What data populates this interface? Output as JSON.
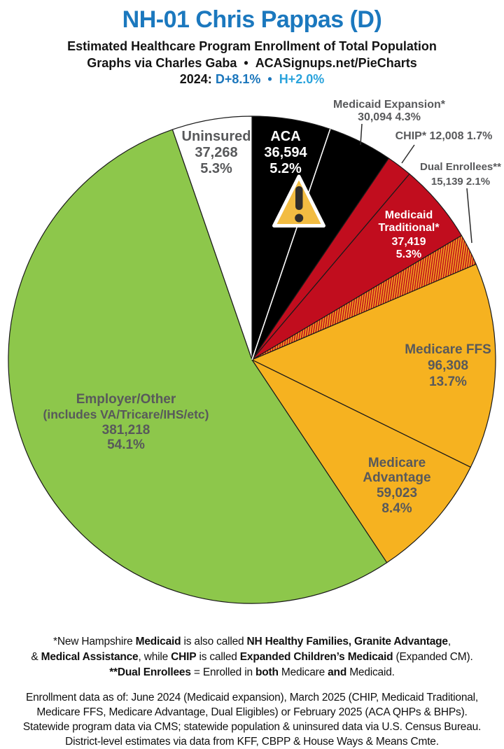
{
  "header": {
    "title": "NH-01 Chris Pappas (D)",
    "title_color": "#1B78BE",
    "subtitle1": "Estimated Healthcare Program Enrollment of Total Population",
    "subtitle2_left": "Graphs via Charles Gaba",
    "subtitle2_bullet": "•",
    "subtitle2_right": "ACASignups.net/PieCharts",
    "partisan": {
      "prefix": "2024:",
      "d_lean": "D+8.1%",
      "bullet": "•",
      "h_lean": "H+2.0%",
      "d_color": "#1B76BC",
      "h_color": "#2AA3DC"
    }
  },
  "chart_data": {
    "type": "pie",
    "title": "Estimated Healthcare Program Enrollment of Total Population",
    "direction": "clockwise",
    "start_angle_deg": 0,
    "legend_position": "labels-on-slices",
    "outline_color": "#1A1A1A",
    "slices": [
      {
        "id": "aca",
        "name": "ACA",
        "value": 36594,
        "value_display": "36,594",
        "pct": 5.2,
        "pct_display": "5.2%",
        "color": "#000000",
        "label_color": "#FFFFFF",
        "label_style": "inside"
      },
      {
        "id": "medicaid-expansion",
        "name": "Medicaid Expansion*",
        "value": 30094,
        "value_display": "30,094",
        "pct": 4.3,
        "pct_display": "4.3%",
        "color": "#000000",
        "label_style": "outside",
        "outside_lines": [
          "Medicaid Expansion*",
          "30,094 4.3%"
        ]
      },
      {
        "id": "chip",
        "name": "CHIP*",
        "value": 12008,
        "value_display": "12,008",
        "pct": 1.7,
        "pct_display": "1.7%",
        "color": "#C10D1E",
        "label_style": "outside",
        "outside_lines": [
          "CHIP* 12,008 1.7%"
        ]
      },
      {
        "id": "medicaid-traditional",
        "name": "Medicaid Traditional*",
        "name_lines": [
          "Medicaid",
          "Traditional*"
        ],
        "value": 37419,
        "value_display": "37,419",
        "pct": 5.3,
        "pct_display": "5.3%",
        "color": "#C10D1E",
        "label_color": "#FFFFFF",
        "label_style": "inside"
      },
      {
        "id": "dual-enrollees",
        "name": "Dual Enrollees**",
        "value": 15139,
        "value_display": "15,139",
        "pct": 2.1,
        "pct_display": "2.1%",
        "hatch": true,
        "hatch_colors": [
          "#C10D1E",
          "#F6B220"
        ],
        "label_style": "outside",
        "outside_lines": [
          "Dual Enrollees**",
          "15,139 2.1%"
        ]
      },
      {
        "id": "medicare-ffs",
        "name": "Medicare FFS",
        "value": 96308,
        "value_display": "96,308",
        "pct": 13.7,
        "pct_display": "13.7%",
        "color": "#F6B220",
        "label_color": "#58595B",
        "label_style": "inside"
      },
      {
        "id": "medicare-advantage",
        "name": "Medicare Advantage",
        "name_lines": [
          "Medicare",
          "Advantage"
        ],
        "value": 59023,
        "value_display": "59,023",
        "pct": 8.4,
        "pct_display": "8.4%",
        "color": "#F6B220",
        "label_color": "#58595B",
        "label_style": "inside"
      },
      {
        "id": "employer-other",
        "name": "Employer/Other (includes VA/Tricare/IHS/etc)",
        "name_lines": [
          "Employer/Other",
          "(includes VA/Tricare/IHS/etc)"
        ],
        "value": 381218,
        "value_display": "381,218",
        "pct": 54.1,
        "pct_display": "54.1%",
        "color": "#8DC74B",
        "label_color": "#58595B",
        "label_style": "inside"
      },
      {
        "id": "uninsured",
        "name": "Uninsured",
        "value": 37268,
        "value_display": "37,268",
        "pct": 5.3,
        "pct_display": "5.3%",
        "color": "#FFFFFF",
        "label_color": "#58595B",
        "label_style": "inside"
      }
    ]
  },
  "warning_icon": {
    "on_slice": "ACA",
    "fill": "#F2BC42",
    "mark_color": "#2F2D2B"
  },
  "footnote1": {
    "line1": [
      {
        "t": "*New Hampshire ",
        "b": false
      },
      {
        "t": "Medicaid",
        "b": true
      },
      {
        "t": " is also called ",
        "b": false
      },
      {
        "t": "NH Healthy Families, Granite Advantage",
        "b": true
      },
      {
        "t": ",",
        "b": false
      }
    ],
    "line2": [
      {
        "t": "& ",
        "b": false
      },
      {
        "t": "Medical Assistance",
        "b": true
      },
      {
        "t": ", while ",
        "b": false
      },
      {
        "t": "CHIP",
        "b": true
      },
      {
        "t": " is called ",
        "b": false
      },
      {
        "t": "Expanded Children’s Medicaid",
        "b": true
      },
      {
        "t": " (Expanded CM).",
        "b": false
      }
    ],
    "line3": [
      {
        "t": "**Dual Enrollees",
        "b": true
      },
      {
        "t": " = Enrolled in ",
        "b": false
      },
      {
        "t": "both",
        "b": true
      },
      {
        "t": " Medicare ",
        "b": false
      },
      {
        "t": "and",
        "b": true
      },
      {
        "t": " Medicaid.",
        "b": false
      }
    ]
  },
  "footnote2": {
    "lines": [
      "Enrollment data as of: June 2024 (Medicaid expansion), March 2025 (CHIP, Medicaid Traditional,",
      "Medicare FFS, Medicare Advantage, Dual Eligibles) or February 2025 (ACA QHPs & BHPs).",
      "Statewide program data via CMS; statewide population & uninsured data via U.S. Census Bureau.",
      "District-level estimates via data from KFF, CBPP & House Ways & Means Cmte."
    ]
  }
}
